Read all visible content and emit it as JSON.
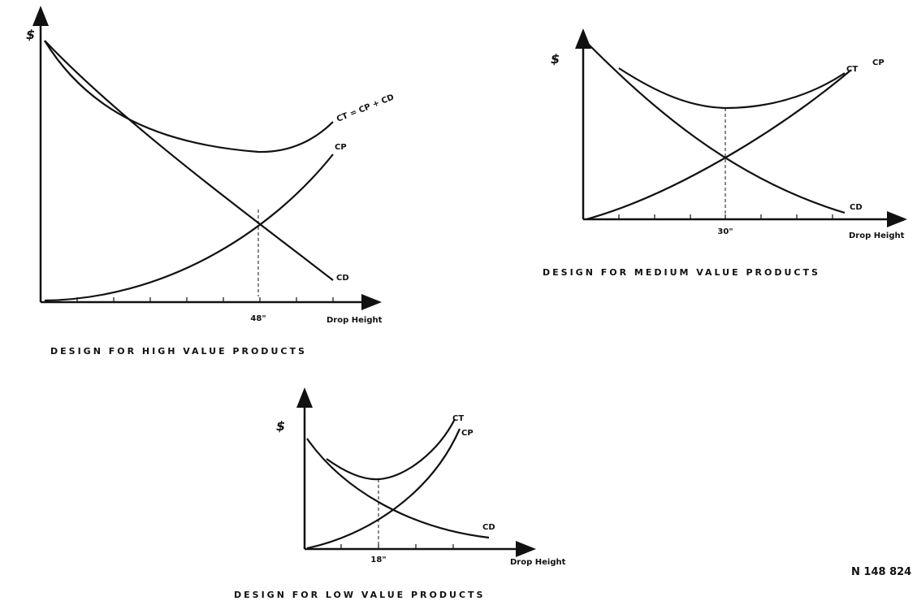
{
  "panels": [
    {
      "y_axis_label": "$",
      "curves": [
        "CT = CP + CD",
        "CP",
        "CD"
      ],
      "x_marker": "48\"",
      "x_axis_label": "Drop Height",
      "caption": "DESIGN FOR HIGH VALUE PRODUCTS"
    },
    {
      "y_axis_label": "$",
      "curves": [
        "CT",
        "CP",
        "CD"
      ],
      "x_marker": "30\"",
      "x_axis_label": "Drop Height",
      "caption": "DESIGN FOR MEDIUM VALUE PRODUCTS"
    },
    {
      "y_axis_label": "$",
      "curves": [
        "CT",
        "CP",
        "CD"
      ],
      "x_marker": "18\"",
      "x_axis_label": "Drop Height",
      "caption": "DESIGN FOR LOW VALUE PRODUCTS"
    }
  ],
  "reference": "N 148 824"
}
